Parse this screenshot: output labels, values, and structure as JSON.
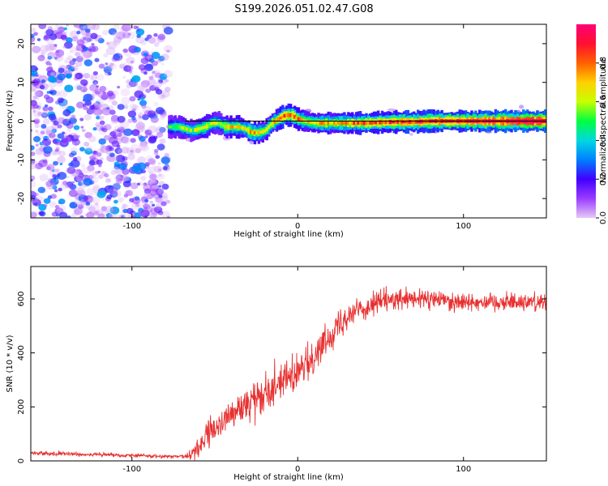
{
  "title": "S199.2026.051.02.47.G08",
  "chart_data": [
    {
      "type": "heatmap",
      "name": "spectrogram",
      "xlabel": "Height of straight line (km)",
      "ylabel": "Frequency (Hz)",
      "xlim": [
        -161,
        150
      ],
      "ylim": [
        -25,
        25
      ],
      "xticks": [
        -100,
        0,
        100
      ],
      "xtick_labels": [
        "-100",
        "0",
        "100"
      ],
      "yticks": [
        -20,
        -10,
        0,
        10,
        20
      ],
      "ytick_labels": [
        "-20",
        "-10",
        "0",
        "10",
        "20"
      ],
      "noise_region_x": [
        -161,
        -78
      ],
      "signal_start_x": -78,
      "signal_ridge": {
        "x": [
          -78,
          -72,
          -68,
          -64,
          -60,
          -56,
          -52,
          -48,
          -44,
          -40,
          -36,
          -32,
          -28,
          -24,
          -20,
          -16,
          -12,
          -8,
          -4,
          0,
          4,
          10,
          20,
          30,
          40,
          50,
          60,
          70,
          80,
          100,
          120,
          150
        ],
        "y": [
          -1.5,
          -1.5,
          -2,
          -2.5,
          -2,
          -1.5,
          -0.5,
          -0.5,
          -1.5,
          -1.5,
          -1.5,
          -2,
          -3,
          -3,
          -2.5,
          -0.5,
          0.5,
          1.5,
          1.5,
          0.5,
          0,
          -0.5,
          -0.5,
          -0.5,
          -0.5,
          -0.3,
          -0.2,
          -0.2,
          0,
          0,
          0,
          0
        ],
        "amplitude": [
          0.45,
          0.5,
          0.55,
          0.5,
          0.55,
          0.6,
          0.55,
          0.5,
          0.6,
          0.65,
          0.6,
          0.6,
          0.7,
          0.65,
          0.6,
          0.6,
          0.7,
          0.75,
          0.7,
          0.75,
          0.6,
          0.65,
          0.65,
          0.7,
          0.75,
          0.75,
          0.8,
          0.8,
          0.85,
          0.85,
          0.9,
          0.95
        ]
      },
      "reference_line_y": 0,
      "colorbar": {
        "label": "Normalized spectral amplitude",
        "range": [
          0,
          1
        ],
        "ticks": [
          0,
          0.2,
          0.4,
          0.6,
          0.8
        ],
        "tick_labels": [
          "0.0",
          "0.2",
          "0.4",
          "0.6",
          "0.8"
        ],
        "colors": [
          "#e6c8f5",
          "#9a3cff",
          "#4000ff",
          "#0080ff",
          "#00d8e0",
          "#00ff40",
          "#c8ff00",
          "#ffd000",
          "#ff6000",
          "#ff1030",
          "#ff0078"
        ]
      }
    },
    {
      "type": "line",
      "name": "snr",
      "xlabel": "Height of straight line (km)",
      "ylabel": "SNR (10 * v/v)",
      "xlim": [
        -161,
        150
      ],
      "ylim": [
        0,
        720
      ],
      "xticks": [
        -100,
        0,
        100
      ],
      "xtick_labels": [
        "-100",
        "0",
        "100"
      ],
      "yticks": [
        0,
        200,
        400,
        600
      ],
      "ytick_labels": [
        "0",
        "200",
        "400",
        "600"
      ],
      "color": "#e83030",
      "trend": {
        "x": [
          -161,
          -110,
          -70,
          -65,
          -50,
          -40,
          -30,
          -20,
          -10,
          0,
          10,
          20,
          30,
          50,
          80,
          100,
          150
        ],
        "y": [
          28,
          22,
          15,
          20,
          120,
          170,
          210,
          260,
          300,
          320,
          390,
          470,
          545,
          590,
          600,
          590,
          590
        ]
      },
      "noise_amplitude": {
        "x": [
          -161,
          -70,
          -60,
          -20,
          20,
          60,
          150
        ],
        "y": [
          10,
          8,
          60,
          90,
          70,
          50,
          45
        ]
      }
    }
  ]
}
